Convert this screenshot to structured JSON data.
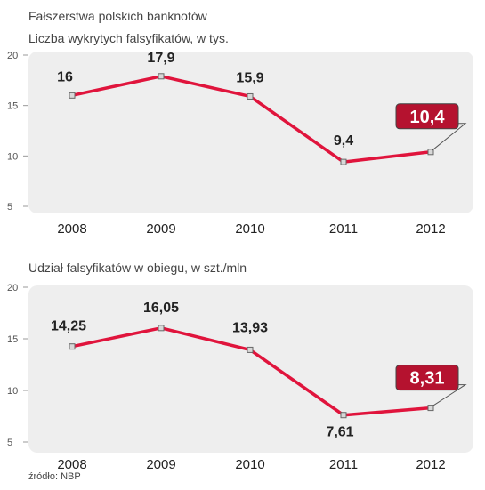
{
  "page": {
    "title": "Fałszerstwa polskich banknotów",
    "source": "źródło: NBP"
  },
  "colors": {
    "line": "#e0143c",
    "highlight_fill": "#b5122f",
    "panel_bg": "#eeeeee",
    "marker_fill": "#d8d8d8"
  },
  "chart_data": [
    {
      "type": "line",
      "title": "Liczba wykrytych falsyfikatów, w tys.",
      "categories": [
        "2008",
        "2009",
        "2010",
        "2011",
        "2012"
      ],
      "values": [
        16,
        17.9,
        15.9,
        9.4,
        10.4
      ],
      "labels": [
        "16",
        "17,9",
        "15,9",
        "9,4",
        "10,4"
      ],
      "highlight_index": 4,
      "yticks": [
        5,
        10,
        15,
        20
      ],
      "ylim": [
        5,
        20
      ],
      "grid": false
    },
    {
      "type": "line",
      "title": "Udział falsyfikatów w obiegu, w szt./mln",
      "categories": [
        "2008",
        "2009",
        "2010",
        "2011",
        "2012"
      ],
      "values": [
        14.25,
        16.05,
        13.93,
        7.61,
        8.31
      ],
      "labels": [
        "14,25",
        "16,05",
        "13,93",
        "7,61",
        "8,31"
      ],
      "highlight_index": 4,
      "yticks": [
        5,
        10,
        15,
        20
      ],
      "ylim": [
        5,
        20
      ],
      "grid": false
    }
  ]
}
